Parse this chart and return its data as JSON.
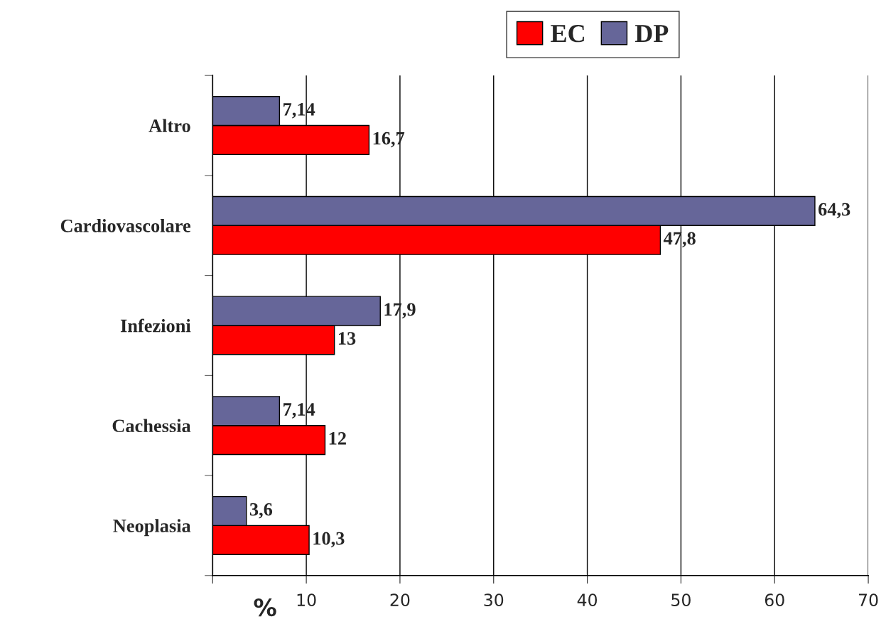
{
  "chart_data": {
    "type": "bar",
    "orientation": "horizontal",
    "categories": [
      "Altro",
      "Cardiovascolare",
      "Infezioni",
      "Cachessia",
      "Neoplasia"
    ],
    "series": [
      {
        "name": "EC",
        "color": "#ff0000",
        "values": [
          16.7,
          47.8,
          13,
          12,
          10.3
        ],
        "value_labels": [
          "16,7",
          "47,8",
          "13",
          "12",
          "10,3"
        ]
      },
      {
        "name": "DP",
        "color": "#666699",
        "values": [
          7.14,
          64.3,
          17.9,
          7.14,
          3.6
        ],
        "value_labels": [
          "7,14",
          "64,3",
          "17,9",
          "7,14",
          "3,6"
        ]
      }
    ],
    "xlabel": "%",
    "xlim": [
      0,
      70
    ],
    "xticks": [
      {
        "value": 0,
        "label": null
      },
      10,
      20,
      30,
      40,
      50,
      60,
      70
    ],
    "grid": "x",
    "legend": "top"
  }
}
